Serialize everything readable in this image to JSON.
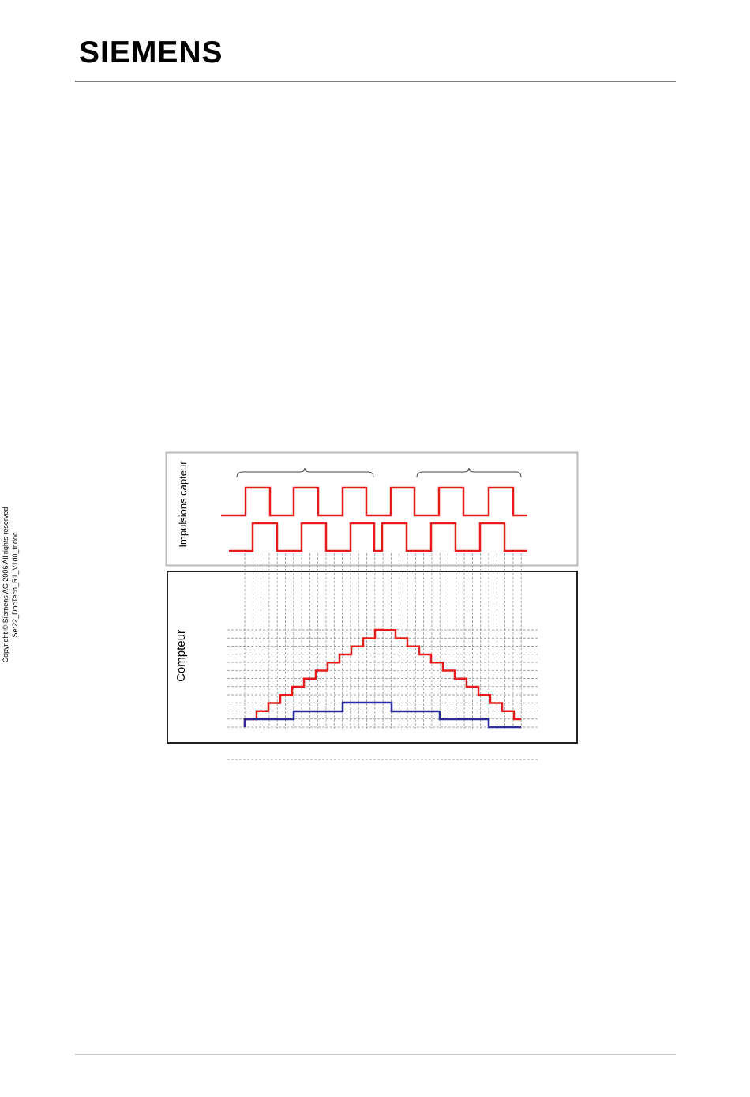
{
  "header": {
    "logo": "SIEMENS"
  },
  "sidebar": {
    "copyright": "Copyright © Siemens AG 2006 All rights reserved",
    "filename": "Set22_DocTech_R1_V1d0_fr.doc"
  },
  "diagram": {
    "sensor_label": "Impulsions capteur",
    "counter_label": "Compteur"
  }
}
